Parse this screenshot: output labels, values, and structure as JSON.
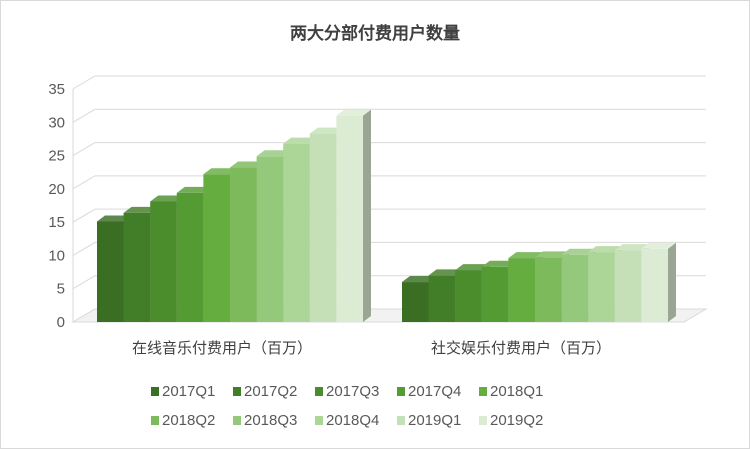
{
  "chart_data": {
    "type": "bar",
    "title": "两大分部付费用户数量",
    "categories": [
      "在线音乐付费用户（百万）",
      "社交娱乐付费用户（百万）"
    ],
    "ylim": [
      0,
      35
    ],
    "yticks": [
      "0",
      "5",
      "10",
      "15",
      "20",
      "25",
      "30",
      "35"
    ],
    "grid": true,
    "legend_position": "bottom",
    "series": [
      {
        "name": "2017Q1",
        "values": [
          15.1,
          6.0
        ],
        "color": "#3a6e23"
      },
      {
        "name": "2017Q2",
        "values": [
          16.4,
          7.0
        ],
        "color": "#427d27"
      },
      {
        "name": "2017Q3",
        "values": [
          18.1,
          7.8
        ],
        "color": "#4b8c2d"
      },
      {
        "name": "2017Q4",
        "values": [
          19.4,
          8.3
        ],
        "color": "#559b34"
      },
      {
        "name": "2018Q1",
        "values": [
          22.2,
          9.6
        ],
        "color": "#65ad3f"
      },
      {
        "name": "2018Q2",
        "values": [
          23.2,
          9.7
        ],
        "color": "#7cba5c"
      },
      {
        "name": "2018Q3",
        "values": [
          24.9,
          10.1
        ],
        "color": "#94c87b"
      },
      {
        "name": "2018Q4",
        "values": [
          26.8,
          10.5
        ],
        "color": "#acd598"
      },
      {
        "name": "2019Q1",
        "values": [
          28.3,
          10.8
        ],
        "color": "#c5e0b6"
      },
      {
        "name": "2019Q2",
        "values": [
          31.0,
          11.0
        ],
        "color": "#dcebd3"
      }
    ]
  }
}
